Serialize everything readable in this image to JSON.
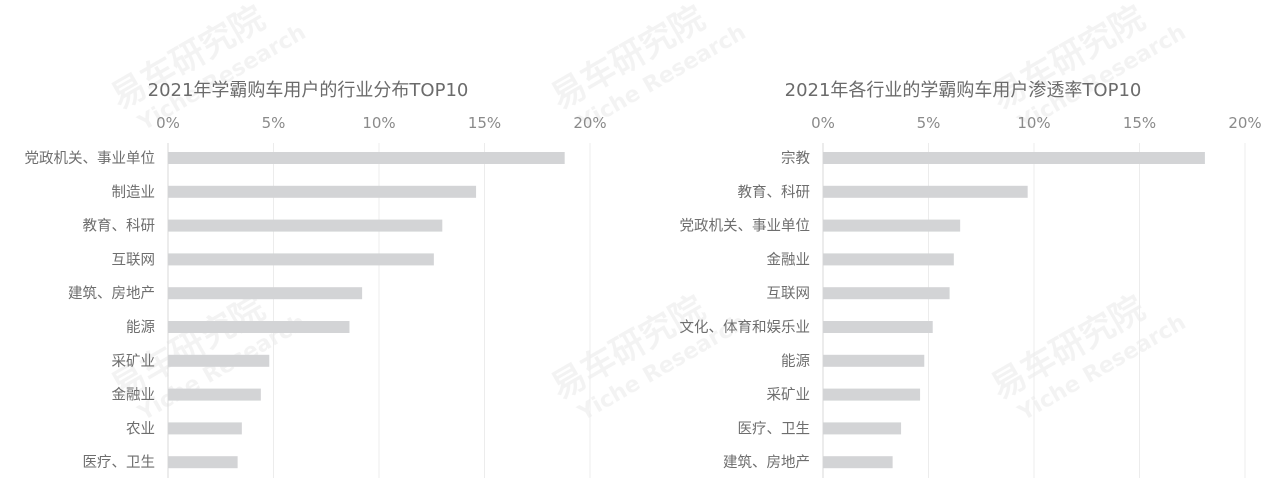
{
  "chart_data": [
    {
      "type": "bar",
      "orientation": "horizontal",
      "title": "2021年学霸购车用户的行业分布TOP10",
      "categories": [
        "党政机关、事业单位",
        "制造业",
        "教育、科研",
        "互联网",
        "建筑、房地产",
        "能源",
        "采矿业",
        "金融业",
        "农业",
        "医疗、卫生"
      ],
      "values": [
        18.8,
        14.6,
        13.0,
        12.6,
        9.2,
        8.6,
        4.8,
        4.4,
        3.5,
        3.3
      ],
      "unit": "%",
      "xlim": [
        0,
        20
      ],
      "xticks": [
        "0%",
        "5%",
        "10%",
        "15%",
        "20%"
      ],
      "xaxis_position": "top",
      "grid": true,
      "bar_color": "#d3d4d6"
    },
    {
      "type": "bar",
      "orientation": "horizontal",
      "title": "2021年各行业的学霸购车用户渗透率TOP10",
      "categories": [
        "宗教",
        "教育、科研",
        "党政机关、事业单位",
        "金融业",
        "互联网",
        "文化、体育和娱乐业",
        "能源",
        "采矿业",
        "医疗、卫生",
        "建筑、房地产"
      ],
      "values": [
        18.1,
        9.7,
        6.5,
        6.2,
        6.0,
        5.2,
        4.8,
        4.6,
        3.7,
        3.3
      ],
      "unit": "%",
      "xlim": [
        0,
        20
      ],
      "xticks": [
        "0%",
        "5%",
        "10%",
        "15%",
        "20%"
      ],
      "xaxis_position": "top",
      "grid": true,
      "bar_color": "#d3d4d6"
    }
  ],
  "watermark": {
    "cn": "易车研究院",
    "en": "Yiche Research"
  }
}
